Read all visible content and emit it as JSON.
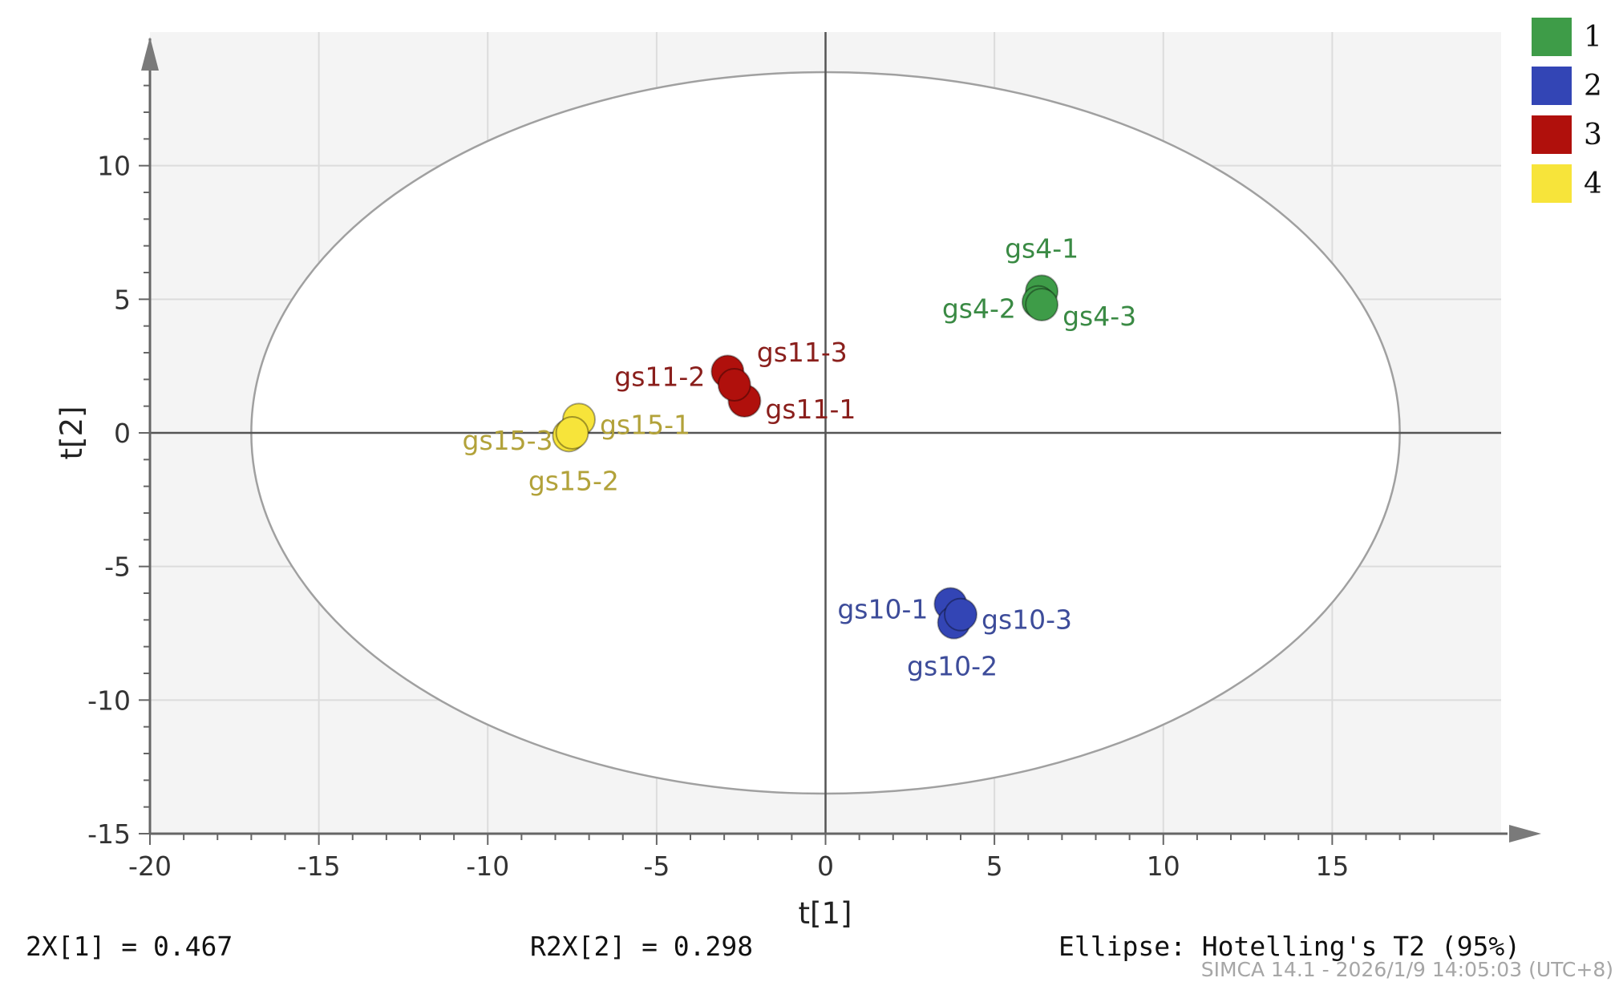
{
  "chart_data": {
    "type": "scatter",
    "title": "",
    "xlabel": "t[1]",
    "ylabel": "t[2]",
    "xlim": [
      -20,
      20
    ],
    "ylim": [
      -15,
      15
    ],
    "xticks": [
      -20,
      -15,
      -10,
      -5,
      0,
      5,
      10,
      15
    ],
    "yticks": [
      -15,
      -10,
      -5,
      0,
      5,
      10
    ],
    "grid": true,
    "legend_position": "top-right",
    "ellipse": {
      "label": "Ellipse: Hotelling's T2 (95%)",
      "t1_radius": 17,
      "t2_radius": 13.5
    },
    "series": [
      {
        "name": "1",
        "color": "#3e9c48",
        "label_color": "#3a8a44",
        "points": [
          {
            "label": "gs4-1",
            "x": 6.4,
            "y": 5.3
          },
          {
            "label": "gs4-2",
            "x": 6.3,
            "y": 4.9
          },
          {
            "label": "gs4-3",
            "x": 6.4,
            "y": 4.8
          }
        ]
      },
      {
        "name": "2",
        "color": "#3345b5",
        "label_color": "#3d4c9a",
        "points": [
          {
            "label": "gs10-1",
            "x": 3.7,
            "y": -6.4
          },
          {
            "label": "gs10-2",
            "x": 3.8,
            "y": -7.1
          },
          {
            "label": "gs10-3",
            "x": 4.0,
            "y": -6.8
          }
        ]
      },
      {
        "name": "3",
        "color": "#b0100c",
        "label_color": "#8a1f1c",
        "points": [
          {
            "label": "gs11-1",
            "x": -2.4,
            "y": 1.2
          },
          {
            "label": "gs11-2",
            "x": -2.9,
            "y": 2.3
          },
          {
            "label": "gs11-3",
            "x": -2.7,
            "y": 1.8
          }
        ]
      },
      {
        "name": "4",
        "color": "#f7e43a",
        "label_color": "#b2a23a",
        "points": [
          {
            "label": "gs15-1",
            "x": -7.3,
            "y": 0.5
          },
          {
            "label": "gs15-2",
            "x": -7.6,
            "y": -0.1
          },
          {
            "label": "gs15-3",
            "x": -7.5,
            "y": 0.0
          }
        ]
      }
    ]
  },
  "footer": {
    "r2x1": "2X[1] = 0.467",
    "r2x2": "R2X[2] = 0.298",
    "ellipse": "Ellipse: Hotelling's T2 (95%)",
    "software": "SIMCA 14.1 - 2026/1/9 14:05:03 (UTC+8)"
  }
}
